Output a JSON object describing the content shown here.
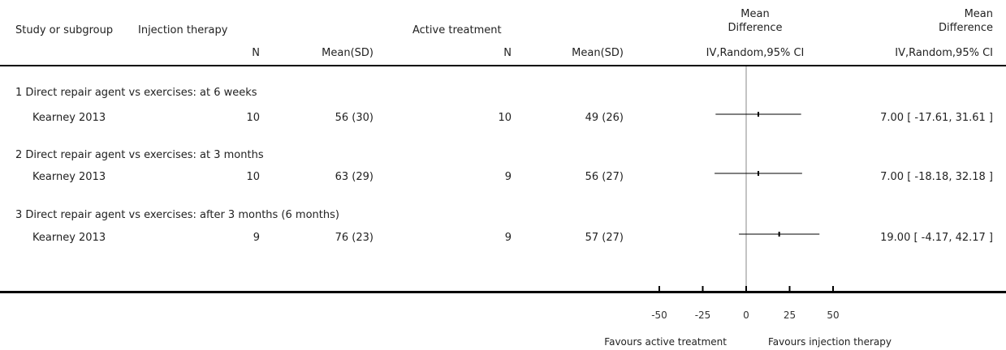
{
  "header": {
    "study_label": "Study or subgroup",
    "group1_label": "Injection therapy",
    "group2_label": "Active treatment",
    "n_label": "N",
    "mean_sd_label": "Mean(SD)",
    "md_label_line1": "Mean",
    "md_label_line2": "Difference",
    "md_method_label": "IV,Random,95% CI"
  },
  "subgroups": [
    {
      "title": "1 Direct repair agent vs exercises: at 6 weeks",
      "study": "Kearney 2013",
      "n1": "10",
      "ms1": "56 (30)",
      "n2": "10",
      "ms2": "49 (26)",
      "ci_text": "7.00 [ -17.61, 31.61 ]"
    },
    {
      "title": "2 Direct repair agent vs exercises: at 3 months",
      "study": "Kearney 2013",
      "n1": "10",
      "ms1": "63 (29)",
      "n2": "9",
      "ms2": "56 (27)",
      "ci_text": "7.00 [ -18.18, 32.18 ]"
    },
    {
      "title": "3 Direct repair agent vs exercises: after 3 months (6 months)",
      "study": "Kearney 2013",
      "n1": "9",
      "ms1": "76 (23)",
      "n2": "9",
      "ms2": "57 (27)",
      "ci_text": "19.00 [ -4.17, 42.17 ]"
    }
  ],
  "footer": {
    "favours_left": "Favours active treatment",
    "favours_right": "Favours injection therapy"
  },
  "chart_data": {
    "type": "forest",
    "x_ticks": [
      -50,
      -25,
      0,
      25,
      50
    ],
    "xlim": [
      -50,
      50
    ],
    "null_line": 0,
    "studies": [
      {
        "subgroup": 1,
        "label": "Kearney 2013",
        "md": 7.0,
        "lower": -17.61,
        "upper": 31.61
      },
      {
        "subgroup": 2,
        "label": "Kearney 2013",
        "md": 7.0,
        "lower": -18.18,
        "upper": 32.18
      },
      {
        "subgroup": 3,
        "label": "Kearney 2013",
        "md": 19.0,
        "lower": -4.17,
        "upper": 42.17
      }
    ]
  }
}
